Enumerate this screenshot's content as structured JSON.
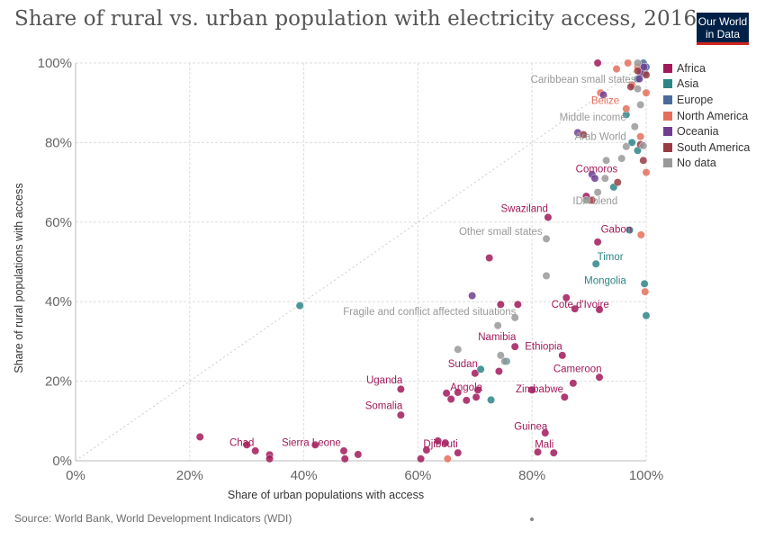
{
  "header": {
    "title": "Share of rural vs. urban population with electricity access, 2016",
    "logo_line1": "Our World",
    "logo_line2": "in Data"
  },
  "footer": {
    "source": "Source: World Bank, World Development Indicators (WDI)"
  },
  "chart_data": {
    "type": "scatter",
    "title": "Share of rural vs. urban population with electricity access, 2016",
    "xlabel": "Share of urban populations with access",
    "ylabel": "Share of rural populations with access",
    "xlim": [
      0,
      100
    ],
    "ylim": [
      0,
      100
    ],
    "xticks": [
      "0%",
      "20%",
      "40%",
      "60%",
      "80%",
      "100%"
    ],
    "yticks": [
      "0%",
      "20%",
      "40%",
      "60%",
      "80%",
      "100%"
    ],
    "grid": true,
    "reference_line": "y = x (dotted)",
    "legend_position": "right",
    "colors": {
      "Africa": "#a2195a",
      "Asia": "#2d8587",
      "Europe": "#4c6a9c",
      "North America": "#e56e5a",
      "Oceania": "#6d3e91",
      "South America": "#993b43",
      "No data": "#999999"
    },
    "series": [
      {
        "name": "Africa",
        "points": [
          [
            30,
            4
          ],
          [
            31.5,
            2.5
          ],
          [
            34,
            1.5
          ],
          [
            34,
            0.5
          ],
          [
            21.8,
            6
          ],
          [
            42,
            4
          ],
          [
            47,
            2.5
          ],
          [
            47.2,
            0.5
          ],
          [
            49.5,
            1.6
          ],
          [
            57,
            18
          ],
          [
            57,
            11.5
          ],
          [
            60.5,
            0.5
          ],
          [
            61.5,
            2.7
          ],
          [
            63.5,
            5
          ],
          [
            64.8,
            4.5
          ],
          [
            65,
            17
          ],
          [
            65.8,
            15.5
          ],
          [
            67,
            17.2
          ],
          [
            67,
            2
          ],
          [
            68.5,
            15.2
          ],
          [
            70,
            22
          ],
          [
            70.2,
            16
          ],
          [
            70.5,
            17.8
          ],
          [
            72.5,
            51
          ],
          [
            74.2,
            22.5
          ],
          [
            74.5,
            39.3
          ],
          [
            77,
            28.7
          ],
          [
            77.5,
            39.3
          ],
          [
            80,
            17.8
          ],
          [
            81,
            2.2
          ],
          [
            82.3,
            7
          ],
          [
            82.8,
            61.2
          ],
          [
            83.8,
            2
          ],
          [
            85.3,
            26.5
          ],
          [
            85.7,
            16
          ],
          [
            86,
            41
          ],
          [
            87.2,
            19.5
          ],
          [
            87.5,
            38.2
          ],
          [
            89.5,
            66.5
          ],
          [
            91.5,
            55
          ],
          [
            91.8,
            38
          ],
          [
            91.8,
            21
          ],
          [
            91.5,
            100
          ]
        ]
      },
      {
        "name": "Asia",
        "points": [
          [
            39.3,
            39
          ],
          [
            71,
            23
          ],
          [
            72.8,
            15.3
          ],
          [
            75.5,
            25
          ],
          [
            91.2,
            49.5
          ],
          [
            94.3,
            68.8
          ],
          [
            96.5,
            87
          ],
          [
            97.1,
            58
          ],
          [
            98.5,
            78
          ],
          [
            99.7,
            44.5
          ],
          [
            100,
            36.5
          ],
          [
            97.5,
            80
          ],
          [
            98.5,
            96
          ],
          [
            99.2,
            99
          ]
        ]
      },
      {
        "name": "Europe",
        "points": [
          [
            99.5,
            100
          ],
          [
            99.8,
            97.5
          ],
          [
            100,
            99
          ]
        ]
      },
      {
        "name": "North America",
        "points": [
          [
            65.2,
            0.5
          ],
          [
            94.8,
            98.5
          ],
          [
            96.8,
            100
          ],
          [
            98.5,
            99
          ],
          [
            92,
            92.5
          ],
          [
            96.5,
            88.5
          ],
          [
            99,
            81.5
          ],
          [
            99.1,
            56.8
          ],
          [
            99.8,
            42.5
          ],
          [
            100,
            72.5
          ],
          [
            100,
            92.5
          ],
          [
            97.5,
            94.5
          ]
        ]
      },
      {
        "name": "Oceania",
        "points": [
          [
            69.5,
            41.5
          ],
          [
            88,
            82.5
          ],
          [
            90.5,
            72
          ],
          [
            91,
            71
          ],
          [
            92.5,
            92
          ],
          [
            99,
            97.5
          ],
          [
            99.6,
            99
          ],
          [
            98.8,
            96
          ]
        ]
      },
      {
        "name": "South America",
        "points": [
          [
            89,
            82
          ],
          [
            90.5,
            65.5
          ],
          [
            95,
            70
          ],
          [
            97.3,
            94
          ],
          [
            98.5,
            98
          ],
          [
            99.5,
            75.5
          ],
          [
            99,
            79.5
          ],
          [
            100,
            97
          ]
        ]
      },
      {
        "name": "No data",
        "points": [
          [
            67,
            28
          ],
          [
            74,
            34
          ],
          [
            74.5,
            26.5
          ],
          [
            75.2,
            25
          ],
          [
            77,
            36
          ],
          [
            82.5,
            55.8
          ],
          [
            82.5,
            46.5
          ],
          [
            89.5,
            65.5
          ],
          [
            91.5,
            67.5
          ],
          [
            92.8,
            71
          ],
          [
            93,
            75.5
          ],
          [
            95.7,
            76
          ],
          [
            96.5,
            79
          ],
          [
            98,
            84
          ],
          [
            98.5,
            93.5
          ],
          [
            99,
            89.5
          ],
          [
            98.5,
            100
          ],
          [
            99.5,
            79.2
          ]
        ]
      }
    ],
    "annotations": [
      {
        "label": "Caribbean small states",
        "series": "No data",
        "x": 98.2,
        "y": 95
      },
      {
        "label": "Belize",
        "series": "North America",
        "x": 95.3,
        "y": 89.7
      },
      {
        "label": "Middle income",
        "series": "No data",
        "x": 96.5,
        "y": 85.5
      },
      {
        "label": "Arab World",
        "series": "No data",
        "x": 96.5,
        "y": 80.6
      },
      {
        "label": "Comoros",
        "series": "Africa",
        "x": 95,
        "y": 72.5
      },
      {
        "label": "IDA blend",
        "series": "No data",
        "x": 95,
        "y": 64.5
      },
      {
        "label": "Swaziland",
        "series": "Africa",
        "x": 82.8,
        "y": 62.6
      },
      {
        "label": "Other small states",
        "series": "No data",
        "x": 81.8,
        "y": 56.8
      },
      {
        "label": "Gabon",
        "series": "Africa",
        "x": 97.5,
        "y": 57.3
      },
      {
        "label": "Timor",
        "series": "Asia",
        "x": 96,
        "y": 50.4
      },
      {
        "label": "Mongolia",
        "series": "Asia",
        "x": 96.5,
        "y": 44.5
      },
      {
        "label": "Cote d'Ivoire",
        "series": "Africa",
        "x": 93.5,
        "y": 38.5
      },
      {
        "label": "Fragile and conflict affected situations",
        "series": "No data",
        "x": 77.2,
        "y": 36.6
      },
      {
        "label": "Namibia",
        "series": "Africa",
        "x": 77.2,
        "y": 30.3
      },
      {
        "label": "Ethiopia",
        "series": "Africa",
        "x": 85.3,
        "y": 27.9
      },
      {
        "label": "Sudan",
        "series": "Africa",
        "x": 70.5,
        "y": 23.5
      },
      {
        "label": "Cameroon",
        "series": "Africa",
        "x": 92.2,
        "y": 22.3
      },
      {
        "label": "Uganda",
        "series": "Africa",
        "x": 57.3,
        "y": 19.5
      },
      {
        "label": "Angola",
        "series": "Africa",
        "x": 71.3,
        "y": 17.7
      },
      {
        "label": "Zimbabwe",
        "series": "Africa",
        "x": 85.5,
        "y": 17.2
      },
      {
        "label": "Somalia",
        "series": "Africa",
        "x": 57.3,
        "y": 13
      },
      {
        "label": "Guinea",
        "series": "Africa",
        "x": 82.7,
        "y": 7.8
      },
      {
        "label": "Chad",
        "series": "Africa",
        "x": 31.3,
        "y": 3.7
      },
      {
        "label": "Sierra Leone",
        "series": "Africa",
        "x": 46.5,
        "y": 3.7
      },
      {
        "label": "Djibouti",
        "series": "Africa",
        "x": 67,
        "y": 3.4
      },
      {
        "label": "Mali",
        "series": "Africa",
        "x": 83.8,
        "y": 3.3
      }
    ]
  }
}
